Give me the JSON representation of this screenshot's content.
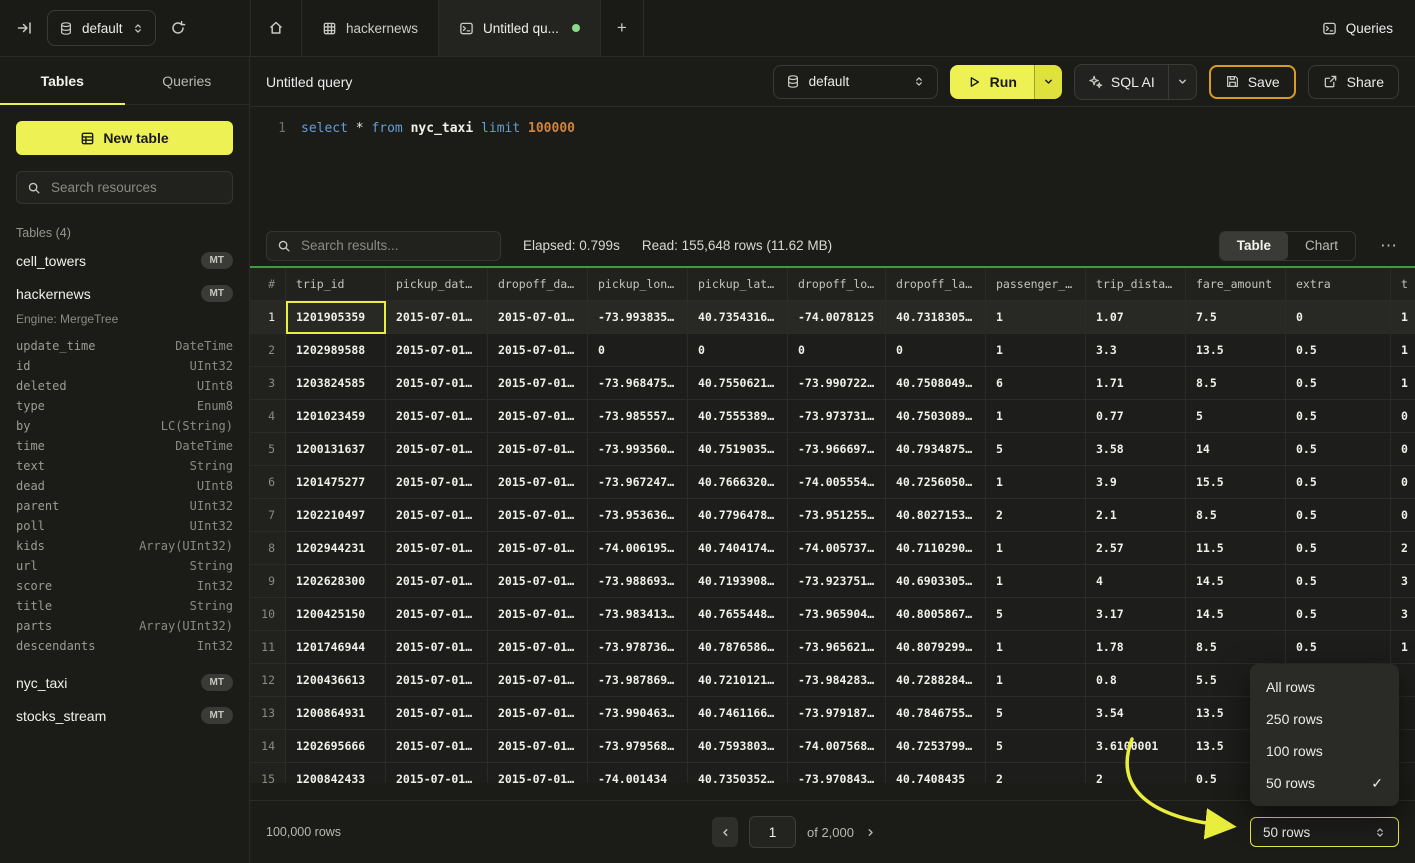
{
  "colors": {
    "accent_yellow": "#eef153",
    "save_border_orange": "#d99b26",
    "grid_top_green": "#3f9b3f",
    "unsaved_dot_green": "#8ad88a",
    "selected_cell_yellow": "#e9ed3c",
    "annotation_arrow_yellow": "#e9ed3c"
  },
  "topbar": {
    "database_selector": {
      "value": "default"
    },
    "tabs": [
      {
        "id": "home",
        "label": ""
      },
      {
        "id": "hackernews",
        "label": "hackernews",
        "active": false
      },
      {
        "id": "untitled-query",
        "label": "Untitled qu...",
        "active": true,
        "unsaved": true
      }
    ],
    "new_tab_label": "+",
    "queries_label": "Queries"
  },
  "sidebar": {
    "tabs": [
      {
        "label": "Tables",
        "active": true
      },
      {
        "label": "Queries",
        "active": false
      }
    ],
    "new_table_label": "New table",
    "search_placeholder": "Search resources",
    "section_label": "Tables (4)",
    "tables": [
      {
        "name": "cell_towers",
        "badge": "MT"
      },
      {
        "name": "hackernews",
        "badge": "MT",
        "expanded": true,
        "engine_label": "Engine: MergeTree",
        "columns": [
          {
            "name": "update_time",
            "type": "DateTime"
          },
          {
            "name": "id",
            "type": "UInt32"
          },
          {
            "name": "deleted",
            "type": "UInt8"
          },
          {
            "name": "type",
            "type": "Enum8"
          },
          {
            "name": "by",
            "type": "LC(String)"
          },
          {
            "name": "time",
            "type": "DateTime"
          },
          {
            "name": "text",
            "type": "String"
          },
          {
            "name": "dead",
            "type": "UInt8"
          },
          {
            "name": "parent",
            "type": "UInt32"
          },
          {
            "name": "poll",
            "type": "UInt32"
          },
          {
            "name": "kids",
            "type": "Array(UInt32)"
          },
          {
            "name": "url",
            "type": "String"
          },
          {
            "name": "score",
            "type": "Int32"
          },
          {
            "name": "title",
            "type": "String"
          },
          {
            "name": "parts",
            "type": "Array(UInt32)"
          },
          {
            "name": "descendants",
            "type": "Int32"
          }
        ]
      },
      {
        "name": "nyc_taxi",
        "badge": "MT"
      },
      {
        "name": "stocks_stream",
        "badge": "MT"
      }
    ]
  },
  "query": {
    "title": "Untitled query",
    "database_selector": {
      "value": "default"
    },
    "run_label": "Run",
    "sql_ai_label": "SQL AI",
    "save_label": "Save",
    "share_label": "Share",
    "editor": {
      "line_number": "1",
      "sql": [
        {
          "text": "select",
          "type": "kw"
        },
        {
          "text": " ",
          "type": "plain"
        },
        {
          "text": "*",
          "type": "plain"
        },
        {
          "text": " ",
          "type": "plain"
        },
        {
          "text": "from",
          "type": "kw"
        },
        {
          "text": " ",
          "type": "plain"
        },
        {
          "text": "nyc_taxi",
          "type": "ident"
        },
        {
          "text": " ",
          "type": "plain"
        },
        {
          "text": "limit",
          "type": "kw"
        },
        {
          "text": " ",
          "type": "plain"
        },
        {
          "text": "100000",
          "type": "num"
        }
      ]
    }
  },
  "results": {
    "search_placeholder": "Search results...",
    "elapsed": "Elapsed: 0.799s",
    "read": "Read: 155,648 rows (11.62 MB)",
    "view_tabs": [
      {
        "label": "Table",
        "active": true
      },
      {
        "label": "Chart",
        "active": false
      }
    ],
    "more_label": "⋯",
    "grid": {
      "columns": [
        "#",
        "trip_id",
        "pickup_dat…",
        "dropoff_da…",
        "pickup_lon…",
        "pickup_lat…",
        "dropoff_lo…",
        "dropoff_la…",
        "passenger_…",
        "trip_dista…",
        "fare_amount",
        "extra",
        "t"
      ],
      "selected_cell": {
        "row": 1,
        "column": "trip_id"
      },
      "rows": [
        [
          "1",
          "1201905359",
          "2015-07-01…",
          "2015-07-01…",
          "-73.993835…",
          "40.7354316…",
          "-74.0078125",
          "40.7318305…",
          "1",
          "1.07",
          "7.5",
          "0",
          "1"
        ],
        [
          "2",
          "1202989588",
          "2015-07-01…",
          "2015-07-01…",
          "0",
          "0",
          "0",
          "0",
          "1",
          "3.3",
          "13.5",
          "0.5",
          "1"
        ],
        [
          "3",
          "1203824585",
          "2015-07-01…",
          "2015-07-01…",
          "-73.968475…",
          "40.7550621…",
          "-73.990722…",
          "40.7508049…",
          "6",
          "1.71",
          "8.5",
          "0.5",
          "1"
        ],
        [
          "4",
          "1201023459",
          "2015-07-01…",
          "2015-07-01…",
          "-73.985557…",
          "40.7555389…",
          "-73.973731…",
          "40.7503089…",
          "1",
          "0.77",
          "5",
          "0.5",
          "0"
        ],
        [
          "5",
          "1200131637",
          "2015-07-01…",
          "2015-07-01…",
          "-73.993560…",
          "40.7519035…",
          "-73.966697…",
          "40.7934875…",
          "5",
          "3.58",
          "14",
          "0.5",
          "0"
        ],
        [
          "6",
          "1201475277",
          "2015-07-01…",
          "2015-07-01…",
          "-73.967247…",
          "40.7666320…",
          "-74.005554…",
          "40.7256050…",
          "1",
          "3.9",
          "15.5",
          "0.5",
          "0"
        ],
        [
          "7",
          "1202210497",
          "2015-07-01…",
          "2015-07-01…",
          "-73.953636…",
          "40.7796478…",
          "-73.951255…",
          "40.8027153…",
          "2",
          "2.1",
          "8.5",
          "0.5",
          "0"
        ],
        [
          "8",
          "1202944231",
          "2015-07-01…",
          "2015-07-01…",
          "-74.006195…",
          "40.7404174…",
          "-74.005737…",
          "40.7110290…",
          "1",
          "2.57",
          "11.5",
          "0.5",
          "2"
        ],
        [
          "9",
          "1202628300",
          "2015-07-01…",
          "2015-07-01…",
          "-73.988693…",
          "40.7193908…",
          "-73.923751…",
          "40.6903305…",
          "1",
          "4",
          "14.5",
          "0.5",
          "3"
        ],
        [
          "10",
          "1200425150",
          "2015-07-01…",
          "2015-07-01…",
          "-73.983413…",
          "40.7655448…",
          "-73.965904…",
          "40.8005867…",
          "5",
          "3.17",
          "14.5",
          "0.5",
          "3"
        ],
        [
          "11",
          "1201746944",
          "2015-07-01…",
          "2015-07-01…",
          "-73.978736…",
          "40.7876586…",
          "-73.965621…",
          "40.8079299…",
          "1",
          "1.78",
          "8.5",
          "0.5",
          "1"
        ],
        [
          "12",
          "1200436613",
          "2015-07-01…",
          "2015-07-01…",
          "-73.987869…",
          "40.7210121…",
          "-73.984283…",
          "40.7288284…",
          "1",
          "0.8",
          "5.5",
          "",
          ""
        ],
        [
          "13",
          "1200864931",
          "2015-07-01…",
          "2015-07-01…",
          "-73.990463…",
          "40.7461166…",
          "-73.979187…",
          "40.7846755…",
          "5",
          "3.54",
          "13.5",
          "",
          ""
        ],
        [
          "14",
          "1202695666",
          "2015-07-01…",
          "2015-07-01…",
          "-73.979568…",
          "40.7593803…",
          "-74.007568…",
          "40.7253799…",
          "5",
          "3.6100001",
          "13.5",
          "",
          ""
        ],
        [
          "15",
          "1200842433",
          "2015-07-01…",
          "2015-07-01…",
          "-74.001434",
          "40.7350352…",
          "-73.970843…",
          "40.7408435",
          "2",
          "2",
          "0.5",
          "",
          ""
        ]
      ]
    },
    "rows_menu": {
      "options": [
        {
          "label": "All rows",
          "selected": false
        },
        {
          "label": "250 rows",
          "selected": false
        },
        {
          "label": "100 rows",
          "selected": false
        },
        {
          "label": "50 rows",
          "selected": true
        }
      ]
    },
    "footer": {
      "total_rows": "100,000 rows",
      "page_input": "1",
      "page_total": "of 2,000",
      "rows_select_value": "50 rows"
    }
  }
}
